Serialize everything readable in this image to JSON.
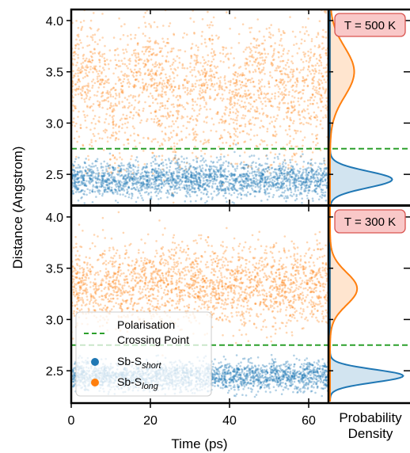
{
  "chart_data": {
    "type": "scatter",
    "xlabel": "Time (ps)",
    "ylabel": "Distance (Angstrom)",
    "side_label": [
      "Probability",
      "Density"
    ],
    "xlim": [
      0,
      65
    ],
    "ylim": [
      2.2,
      4.1
    ],
    "x_ticks": [
      0,
      20,
      40,
      60
    ],
    "x_tick_labels": [
      "0",
      "20",
      "40",
      "60"
    ],
    "y_ticks": [
      2.5,
      3.0,
      3.5,
      4.0
    ],
    "y_tick_labels": [
      "2.5",
      "3.0",
      "3.5",
      "4.0"
    ],
    "reference_line": {
      "y": 2.75,
      "label": [
        "Polarisation",
        "Crossing Point"
      ],
      "color": "#2ca02c",
      "style": "dashed"
    },
    "series": [
      {
        "name": "Sb-S",
        "subscript": "short",
        "color": "#1f77b4"
      },
      {
        "name": "Sb-S",
        "subscript": "long",
        "color": "#ff7f0e"
      }
    ],
    "panels": [
      {
        "temperature_label": "T = 500 K",
        "series_stats": [
          {
            "series": 0,
            "mean": 2.45,
            "spread": 0.09
          },
          {
            "series": 1,
            "mean": 3.35,
            "spread": 0.3
          }
        ],
        "density": [
          {
            "series": 0,
            "peak_y": 2.45,
            "peak_density": 0.85
          },
          {
            "series": 1,
            "peak_y": 3.5,
            "peak_density": 0.33
          }
        ]
      },
      {
        "temperature_label": "T = 300 K",
        "series_stats": [
          {
            "series": 0,
            "mean": 2.45,
            "spread": 0.07
          },
          {
            "series": 1,
            "mean": 3.33,
            "spread": 0.2
          }
        ],
        "density": [
          {
            "series": 0,
            "peak_y": 2.45,
            "peak_density": 1.0
          },
          {
            "series": 1,
            "peak_y": 3.3,
            "peak_density": 0.37
          }
        ]
      }
    ],
    "colors": {
      "label_box_fill": "#f9c8c8",
      "label_box_edge": "#d9534f"
    }
  }
}
